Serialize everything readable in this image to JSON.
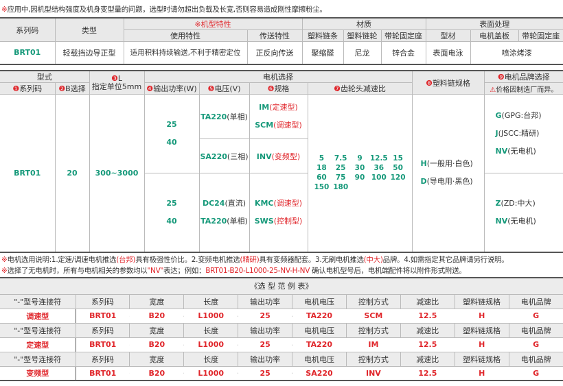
{
  "top_note": {
    "mark": "※",
    "text": "应用中,因机型结构强度及机身变型量的问题，选型时请勿超出负载及长宽,否则容易造成刚性摩擦粉尘。"
  },
  "t1": {
    "h_series": "系列码",
    "h_type": "类型",
    "h_feature": "※机型特性",
    "h_material": "材质",
    "h_surface": "表面处理",
    "sub": [
      "使用特性",
      "传送特性",
      "塑料链条",
      "塑料链轮",
      "带轮固定座",
      "型材",
      "电机盖板",
      "带轮固定座"
    ],
    "row": [
      "BRT01",
      "轻载挡边导正型",
      "适用积料持续输送,不利于精密定位",
      "正反向传送",
      "聚缩醛",
      "尼龙",
      "锌合金",
      "表面电泳",
      "喷涂烤漆"
    ]
  },
  "t2": {
    "h_model": "型式",
    "h_L_num": "❸",
    "h_L": "L",
    "h_L_unit": "指定单位5mm",
    "h_motor": "电机选择",
    "h_chain_num": "❽",
    "h_chain": "塑料链规格",
    "h_brand_num": "❾",
    "h_brand": "电机品牌选择",
    "sub": [
      {
        "n": "❶",
        "t": "系列码"
      },
      {
        "n": "❷",
        "t": "B选择"
      },
      {
        "n": "❹",
        "t": "输出功率(W)"
      },
      {
        "n": "❺",
        "t": "电压(V)"
      },
      {
        "n": "❻",
        "t": "规格"
      },
      {
        "n": "❼",
        "t": "齿轮头减速比"
      }
    ],
    "brand_warn_icon": "warning-triangle-icon",
    "brand_warn": "价格因制造厂而异。",
    "series": "BRT01",
    "b": "20",
    "L": "300~3000",
    "power_a": [
      "25",
      "40"
    ],
    "power_b": [
      "25",
      "40"
    ],
    "volt_a1": {
      "code": "TA220",
      "desc": "(单相)"
    },
    "spec_a1": [
      {
        "code": "IM",
        "desc": "(定速型)"
      },
      {
        "code": "SCM",
        "desc": "(调速型)"
      }
    ],
    "volt_a2": {
      "code": "SA220",
      "desc": "(三相)"
    },
    "spec_a2": {
      "code": "INV",
      "desc": "(变频型)"
    },
    "volt_b": [
      {
        "code": "DC24",
        "desc": "(直流)"
      },
      {
        "code": "TA220",
        "desc": "(单相)"
      }
    ],
    "spec_b": [
      {
        "code": "KMC",
        "desc": "(调速型)"
      },
      {
        "code": "SWS",
        "desc": "(控制型)"
      }
    ],
    "ratios": [
      "5",
      "7.5",
      "9",
      "12.5",
      "15",
      "18",
      "25",
      "30",
      "36",
      "50",
      "60",
      "75",
      "90",
      "100",
      "120",
      "150",
      "180"
    ],
    "chain": [
      {
        "code": "H",
        "desc": "(一般用·白色)"
      },
      {
        "code": "D",
        "desc": "(导电用·黑色)"
      }
    ],
    "brand_a": [
      {
        "code": "G",
        "desc": "(GPG:台邦)"
      },
      {
        "code": "J",
        "desc": "(JSCC:精研)"
      },
      {
        "code": "NV",
        "desc": "(无电机)"
      }
    ],
    "brand_b": [
      {
        "code": "Z",
        "desc": "(ZD:中大)"
      },
      {
        "code": "NV",
        "desc": "(无电机)"
      }
    ]
  },
  "notes": {
    "n1": [
      "※",
      "电机选用说明:1.定速/调速电机推选",
      "(台邦)",
      "具有极强性价比。2.变频电机推选",
      "(精研)",
      "具有变频器配套。3.无刷电机推选",
      "(中大)",
      "品牌。4.如需指定其它品牌请另行说明。"
    ],
    "n2": [
      "※",
      "选择了无电机时，所有与电机相关的参数均以",
      "\"NV\"",
      "表达；例如：",
      "BRT01-B20-L1000-25-NV-H-NV",
      "确认电机型号后，电机端配件将以附件形式附送。"
    ]
  },
  "t3": {
    "title": "《选 型 范 例 表》",
    "header": [
      "\"-\"型号连接符",
      "系列码",
      "宽度",
      "长度",
      "输出功率",
      "电机电压",
      "控制方式",
      "减速比",
      "塑料链规格",
      "电机品牌"
    ],
    "dash": "–",
    "rows": [
      {
        "type": "调速型",
        "vals": [
          "BRT01",
          "B20",
          "L1000",
          "25",
          "TA220",
          "SCM",
          "12.5",
          "H",
          "G"
        ]
      },
      {
        "type": "定速型",
        "vals": [
          "BRT01",
          "B20",
          "L1000",
          "25",
          "TA220",
          "IM",
          "12.5",
          "H",
          "G"
        ]
      },
      {
        "type": "变频型",
        "vals": [
          "BRT01",
          "B20",
          "L1000",
          "25",
          "SA220",
          "INV",
          "12.5",
          "H",
          "G"
        ]
      }
    ]
  },
  "colors": {
    "accent_green": "#16997a",
    "accent_red": "#e0262b",
    "header_bg": "#e9e9e9"
  }
}
